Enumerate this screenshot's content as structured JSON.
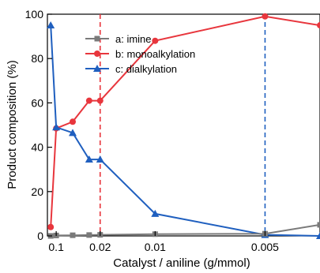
{
  "chart_data": {
    "type": "line",
    "title": "",
    "xlabel": "Catalyst / aniline  (g/mmol)",
    "ylabel": "Product composition (%)",
    "x_scale": "reciprocal",
    "x_order": "decreasing",
    "xlim": [
      0.5,
      0.004
    ],
    "ylim": [
      0,
      100
    ],
    "x_ticks": [
      0.1,
      0.02,
      0.01,
      0.005
    ],
    "x_tick_labels": [
      "0.1",
      "0.02",
      "0.01",
      "0.005"
    ],
    "y_ticks": [
      0,
      20,
      40,
      60,
      80,
      100
    ],
    "y_tick_labels": [
      "0",
      "20",
      "40",
      "60",
      "80",
      "100"
    ],
    "grid": false,
    "legend": "top-left",
    "x": [
      0.2,
      0.1,
      0.04,
      0.025,
      0.02,
      0.01,
      0.005,
      0.004
    ],
    "series": [
      {
        "name": "a: imine",
        "color": "#7a7a7a",
        "marker": "square",
        "values": [
          0,
          0.2,
          0.3,
          0.4,
          0.5,
          0.8,
          1,
          5
        ]
      },
      {
        "name": "b: monoalkylation",
        "color": "#e8363d",
        "marker": "circle",
        "values": [
          4,
          48.5,
          51.5,
          61,
          61,
          88,
          99,
          95
        ]
      },
      {
        "name": "c: dialkylation",
        "color": "#1f5fbf",
        "marker": "triangle",
        "values": [
          95,
          49,
          46.5,
          34.5,
          34.5,
          10,
          0.5,
          0
        ]
      }
    ],
    "reference_lines": [
      {
        "x": 0.02,
        "color": "#e8363d",
        "style": "dashed"
      },
      {
        "x": 0.005,
        "color": "#1f5fbf",
        "style": "dashed"
      }
    ]
  }
}
